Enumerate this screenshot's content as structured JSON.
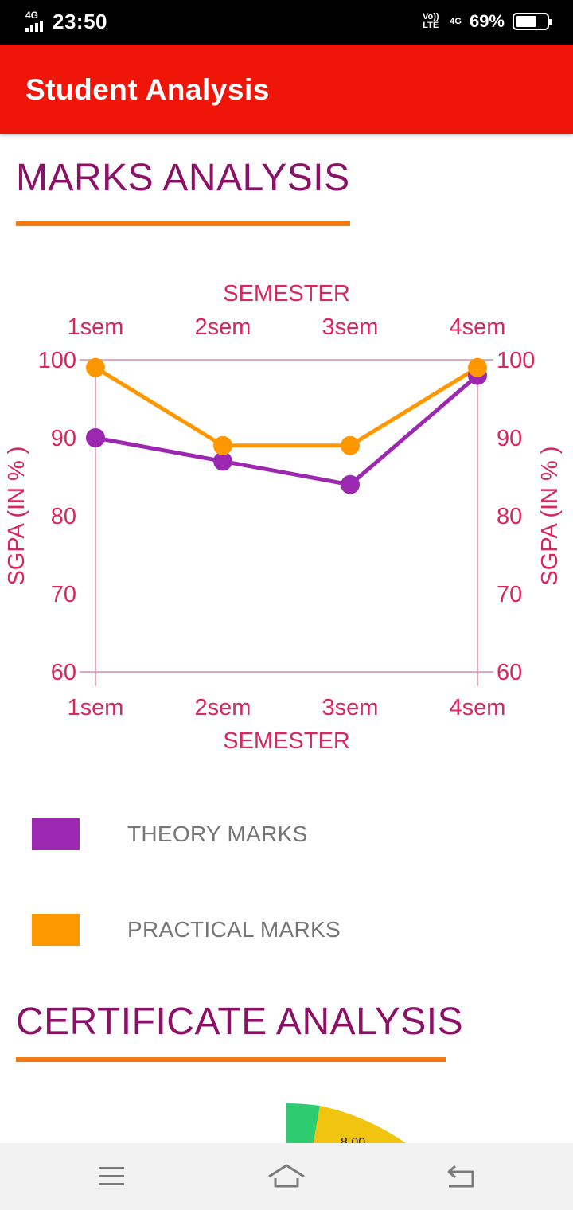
{
  "status_bar": {
    "network": "4G",
    "time": "23:50",
    "volte": "Vo)) LTE",
    "network2": "4G",
    "battery_pct": "69%",
    "battery_level": 0.69
  },
  "app_bar": {
    "title": "Student Analysis"
  },
  "marks_section": {
    "title": "MARKS ANALYSIS"
  },
  "chart_data": {
    "type": "line",
    "x": [
      "1sem",
      "2sem",
      "3sem",
      "4sem"
    ],
    "xlabel": "SEMESTER",
    "ylabel": "SGPA (IN % )",
    "ylim": [
      60,
      100
    ],
    "yticks": [
      100,
      90,
      80,
      70,
      60
    ],
    "series": [
      {
        "name": "THEORY MARKS",
        "color": "#9c27b0",
        "values": [
          90,
          87,
          84,
          98
        ]
      },
      {
        "name": "PRACTICAL MARKS",
        "color": "#ff9800",
        "values": [
          99,
          89,
          89,
          99
        ]
      }
    ]
  },
  "legend": [
    {
      "label": "THEORY MARKS",
      "color": "#9c27b0"
    },
    {
      "label": "PRACTICAL MARKS",
      "color": "#ff9800"
    }
  ],
  "certificate_section": {
    "title": "CERTIFICATE ANALYSIS",
    "gauge_value": "8.00"
  },
  "nav": {
    "menu_icon": "menu-icon",
    "home_icon": "home-icon",
    "back_icon": "back-icon"
  }
}
